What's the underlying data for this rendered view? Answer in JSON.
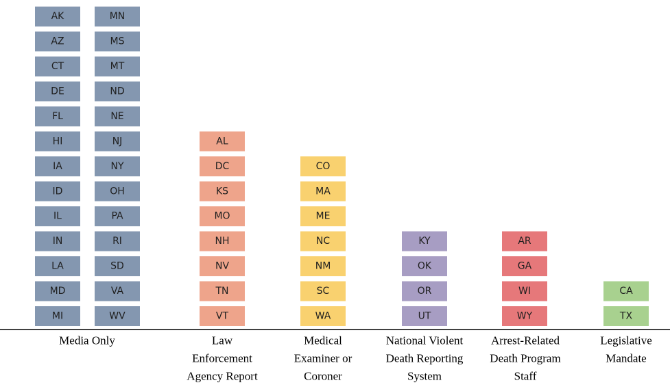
{
  "groups": [
    {
      "label": [
        "Media Only"
      ],
      "color": "#8497b0",
      "columns": [
        [
          "AK",
          "AZ",
          "CT",
          "DE",
          "FL",
          "HI",
          "IA",
          "ID",
          "IL",
          "IN",
          "LA",
          "MD",
          "MI"
        ],
        [
          "MN",
          "MS",
          "MT",
          "ND",
          "NE",
          "NJ",
          "NY",
          "OH",
          "PA",
          "RI",
          "SD",
          "VA",
          "WV"
        ]
      ]
    },
    {
      "label": [
        "Law",
        "Enforcement",
        "Agency Report"
      ],
      "color": "#eea48b",
      "columns": [
        [
          "AL",
          "DC",
          "KS",
          "MO",
          "NH",
          "NV",
          "TN",
          "VT"
        ]
      ]
    },
    {
      "label": [
        "Medical",
        "Examiner or",
        "Coroner"
      ],
      "color": "#f9d16f",
      "columns": [
        [
          "CO",
          "MA",
          "ME",
          "NC",
          "NM",
          "SC",
          "WA"
        ]
      ]
    },
    {
      "label": [
        "National Violent",
        "Death Reporting",
        "System"
      ],
      "color": "#a79dc3",
      "columns": [
        [
          "KY",
          "OK",
          "OR",
          "UT"
        ]
      ]
    },
    {
      "label": [
        "Arrest-Related",
        "Death Program",
        "Staff"
      ],
      "color": "#e6787a",
      "columns": [
        [
          "AR",
          "GA",
          "WI",
          "WY"
        ]
      ]
    },
    {
      "label": [
        "Legislative",
        "Mandate"
      ],
      "color": "#a8d18f",
      "columns": [
        [
          "CA",
          "TX"
        ]
      ]
    }
  ]
}
